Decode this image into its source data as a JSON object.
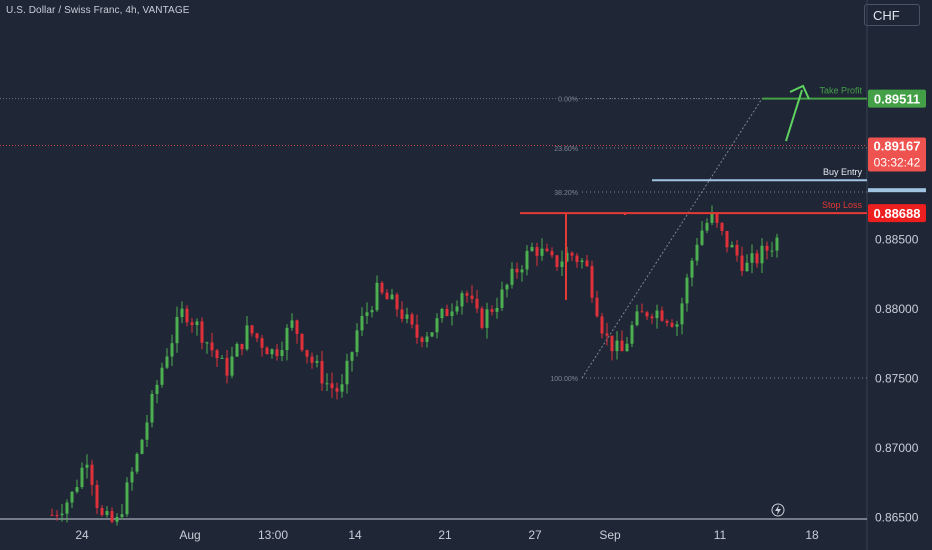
{
  "header": {
    "title": "U.S. Dollar / Swiss Franc, 4h, VANTAGE",
    "currency_button": "CHF"
  },
  "colors": {
    "background": "#1f2636",
    "up": "#4caf50",
    "down": "#e0303a",
    "take_profit": "#43a047",
    "stop_loss": "#e53935",
    "buy_entry": "#9fc3e0",
    "last_price": "#ef5350",
    "axis_text": "#c9ced8",
    "fib": "#7d8694"
  },
  "chart_data": {
    "type": "candlestick",
    "title": "U.S. Dollar / Swiss Franc, 4h, VANTAGE",
    "xlabel": "",
    "ylabel": "",
    "ylim": [
      0.8649,
      0.9022
    ],
    "y_ticks": [
      "0.88500",
      "0.88000",
      "0.87500",
      "0.87000",
      "0.86500"
    ],
    "x_ticks": [
      "24",
      "Aug",
      "13:00",
      "14",
      "21",
      "27",
      "Sep",
      "11",
      "18"
    ],
    "grid": false,
    "levels": {
      "take_profit": {
        "label": "Take Profit",
        "price": 0.89511,
        "price_label": "0.89511"
      },
      "buy_entry": {
        "label": "Buy Entry",
        "price": 0.88925
      },
      "stop_loss": {
        "label": "Stop Loss",
        "price": 0.88688,
        "price_label": "0.88688"
      }
    },
    "last_price": {
      "price": 0.89167,
      "price_label": "0.89167",
      "countdown": "03:32:42"
    },
    "fib_labels": [
      "0.00%",
      "23.60%",
      "38.20%",
      "100.00%"
    ],
    "candles_path": [
      [
        0,
        0.8652
      ],
      [
        12,
        0.8665
      ],
      [
        22,
        0.8695
      ],
      [
        30,
        0.865
      ],
      [
        40,
        0.8645
      ],
      [
        52,
        0.869
      ],
      [
        70,
        0.8765
      ],
      [
        82,
        0.88
      ],
      [
        92,
        0.8785
      ],
      [
        108,
        0.8755
      ],
      [
        122,
        0.8785
      ],
      [
        138,
        0.8768
      ],
      [
        150,
        0.879
      ],
      [
        160,
        0.8765
      ],
      [
        172,
        0.8745
      ],
      [
        180,
        0.874
      ],
      [
        190,
        0.8785
      ],
      [
        202,
        0.8812
      ],
      [
        216,
        0.88
      ],
      [
        226,
        0.878
      ],
      [
        236,
        0.8785
      ],
      [
        248,
        0.8802
      ],
      [
        256,
        0.8815
      ],
      [
        266,
        0.879
      ],
      [
        280,
        0.881
      ],
      [
        290,
        0.883
      ],
      [
        300,
        0.8845
      ],
      [
        312,
        0.8832
      ],
      [
        322,
        0.884
      ],
      [
        332,
        0.8832
      ],
      [
        344,
        0.878
      ],
      [
        354,
        0.8767
      ],
      [
        362,
        0.879
      ],
      [
        372,
        0.88
      ],
      [
        380,
        0.8797
      ],
      [
        389,
        0.879
      ],
      [
        397,
        0.883
      ],
      [
        402,
        0.8853
      ],
      [
        410,
        0.8866
      ],
      [
        418,
        0.885
      ],
      [
        432,
        0.883
      ],
      [
        442,
        0.884
      ],
      [
        451,
        0.885
      ]
    ],
    "candles_path_x_range": [
      0,
      451
    ]
  }
}
